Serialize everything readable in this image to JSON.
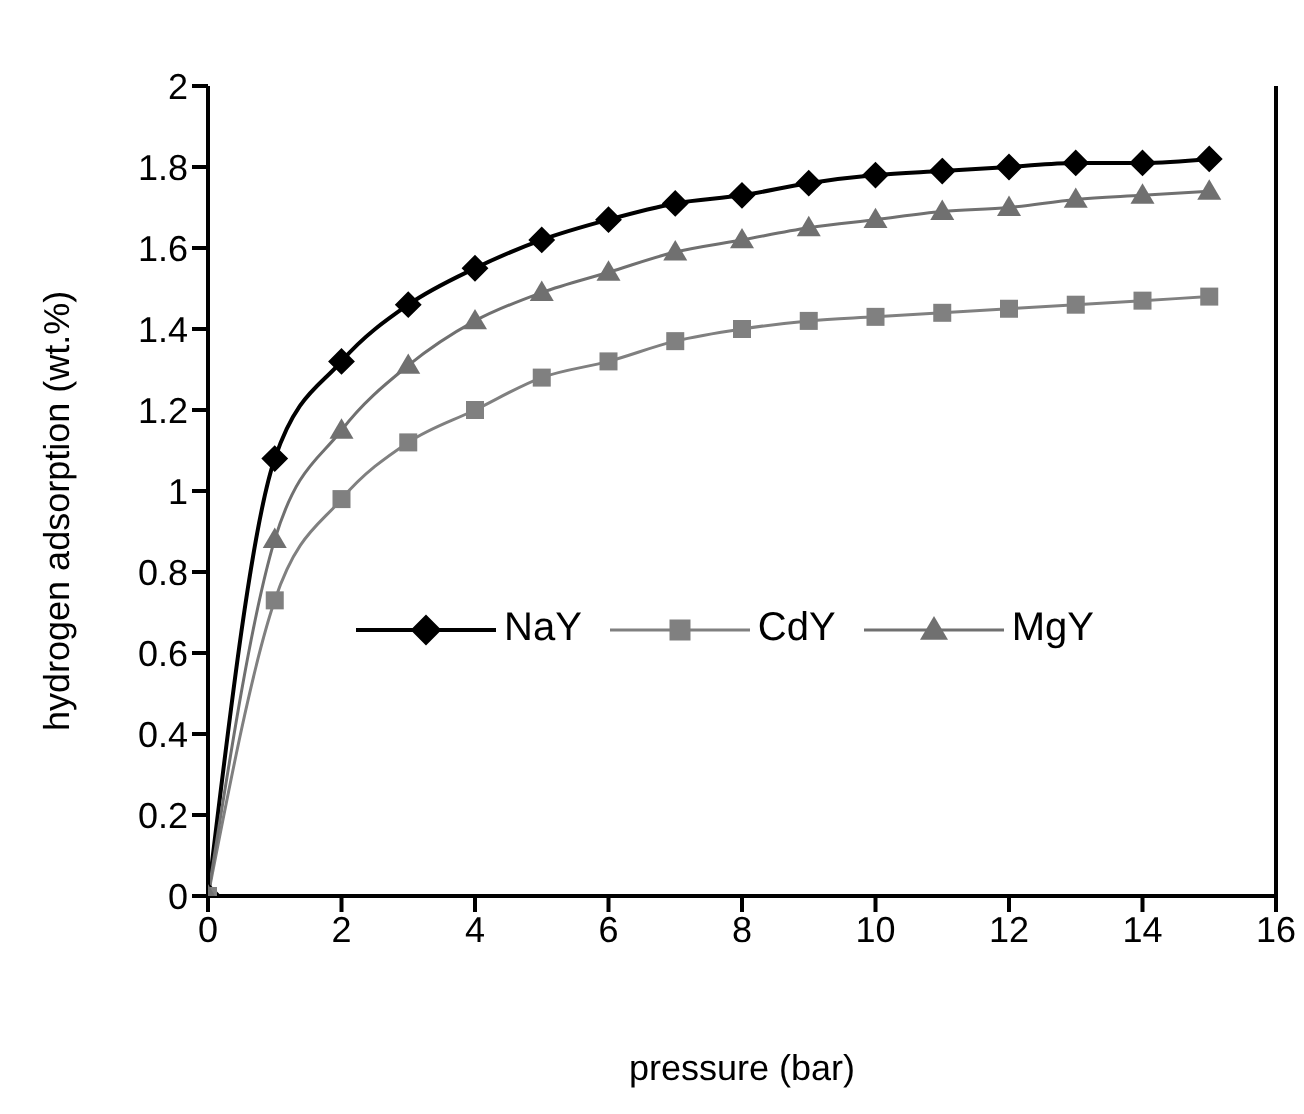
{
  "chart_data": {
    "type": "line",
    "xlabel": "pressure (bar)",
    "ylabel": "hydrogen adsorption (wt.%)",
    "x": [
      0,
      1,
      2,
      3,
      4,
      5,
      6,
      7,
      8,
      9,
      10,
      11,
      12,
      13,
      14,
      15
    ],
    "series": [
      {
        "name": "NaY",
        "color": "#000000",
        "marker": "diamond",
        "values": [
          0,
          1.08,
          1.32,
          1.46,
          1.55,
          1.62,
          1.67,
          1.71,
          1.73,
          1.76,
          1.78,
          1.79,
          1.8,
          1.81,
          1.81,
          1.82
        ]
      },
      {
        "name": "CdY",
        "color": "#808080",
        "marker": "square",
        "values": [
          0,
          0.73,
          0.98,
          1.12,
          1.2,
          1.28,
          1.32,
          1.37,
          1.4,
          1.42,
          1.43,
          1.44,
          1.45,
          1.46,
          1.47,
          1.48
        ]
      },
      {
        "name": "MgY",
        "color": "#707070",
        "marker": "triangle",
        "values": [
          0,
          0.88,
          1.15,
          1.31,
          1.42,
          1.49,
          1.54,
          1.59,
          1.62,
          1.65,
          1.67,
          1.69,
          1.7,
          1.72,
          1.73,
          1.74
        ]
      }
    ],
    "xlim": [
      0,
      16
    ],
    "xticks": [
      0,
      2,
      4,
      6,
      8,
      10,
      12,
      14,
      16
    ],
    "ylim": [
      0,
      2
    ],
    "yticks": [
      0,
      0.2,
      0.4,
      0.6,
      0.8,
      1,
      1.2,
      1.4,
      1.6,
      1.8,
      2
    ],
    "grid": false,
    "legend": "right"
  }
}
